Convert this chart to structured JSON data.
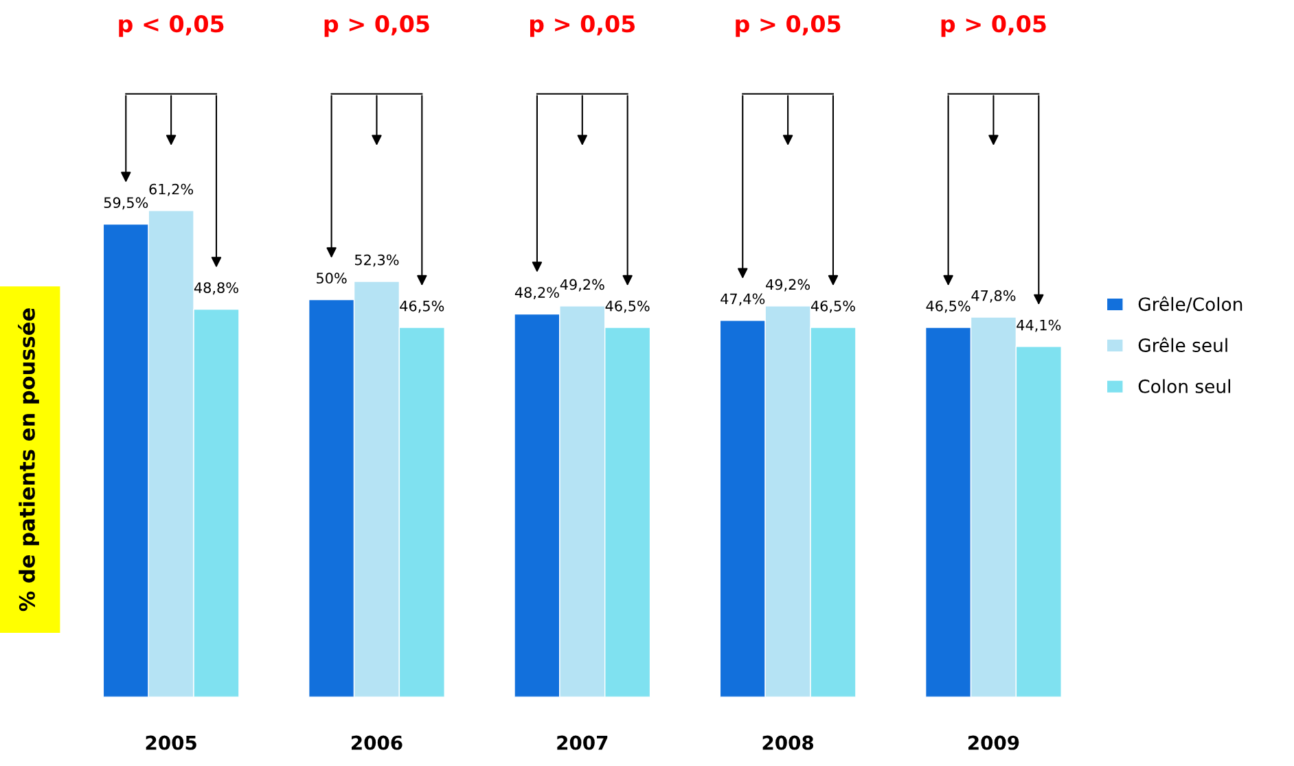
{
  "chart_data": {
    "type": "bar",
    "ylabel": "% de patients en poussée",
    "categories": [
      "2005",
      "2006",
      "2007",
      "2008",
      "2009"
    ],
    "series": [
      {
        "name": "Grêle/Colon",
        "color": "#1270dc",
        "values": [
          59.5,
          50,
          48.2,
          47.4,
          46.5
        ],
        "value_labels": [
          "59,5%",
          "50%",
          "48,2%",
          "47,4%",
          "46,5%"
        ]
      },
      {
        "name": "Grêle seul",
        "color": "#b5e3f4",
        "values": [
          61.2,
          52.3,
          49.2,
          49.2,
          47.8
        ],
        "value_labels": [
          "61,2%",
          "52,3%",
          "49,2%",
          "49,2%",
          "47,8%"
        ]
      },
      {
        "name": "Colon seul",
        "color": "#7fe1f0",
        "values": [
          48.8,
          46.5,
          46.5,
          46.5,
          44.1
        ],
        "value_labels": [
          "48,8%",
          "46,5%",
          "46,5%",
          "46,5%",
          "44,1%"
        ]
      }
    ],
    "annotations": [
      "p < 0,05",
      "p > 0,05",
      "p > 0,05",
      "p > 0,05",
      "p > 0,05"
    ],
    "legend": "right",
    "grid": false
  }
}
